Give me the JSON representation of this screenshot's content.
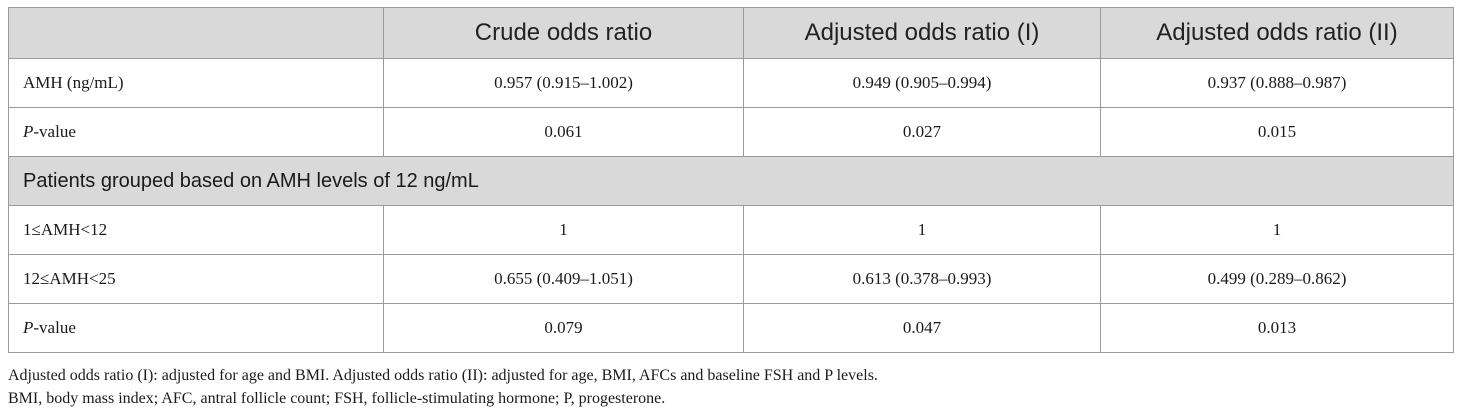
{
  "table": {
    "headers": [
      "",
      "Crude odds ratio",
      "Adjusted odds ratio (I)",
      "Adjusted odds ratio (II)"
    ],
    "rows": [
      {
        "label_main": "AMH (ng/mL)",
        "label_italic": "",
        "values": [
          "0.957 (0.915–1.002)",
          "0.949 (0.905–0.994)",
          "0.937 (0.888–0.987)"
        ]
      },
      {
        "label_main": "-value",
        "label_italic": "P",
        "values": [
          "0.061",
          "0.027",
          "0.015"
        ]
      },
      {
        "group": "Patients grouped based on AMH levels of 12 ng/mL"
      },
      {
        "label_main": "1≤AMH<12",
        "label_italic": "",
        "values": [
          "1",
          "1",
          "1"
        ]
      },
      {
        "label_main": "12≤AMH<25",
        "label_italic": "",
        "values": [
          "0.655 (0.409–1.051)",
          "0.613 (0.378–0.993)",
          "0.499 (0.289–0.862)"
        ]
      },
      {
        "label_main": "-value",
        "label_italic": "P",
        "values": [
          "0.079",
          "0.047",
          "0.013"
        ]
      }
    ]
  },
  "footnotes": [
    "Adjusted odds ratio (I): adjusted for age and BMI. Adjusted odds ratio (II): adjusted for age, BMI, AFCs and baseline FSH and P levels.",
    "BMI, body mass index; AFC, antral follicle count; FSH, follicle-stimulating hormone; P, progesterone."
  ]
}
